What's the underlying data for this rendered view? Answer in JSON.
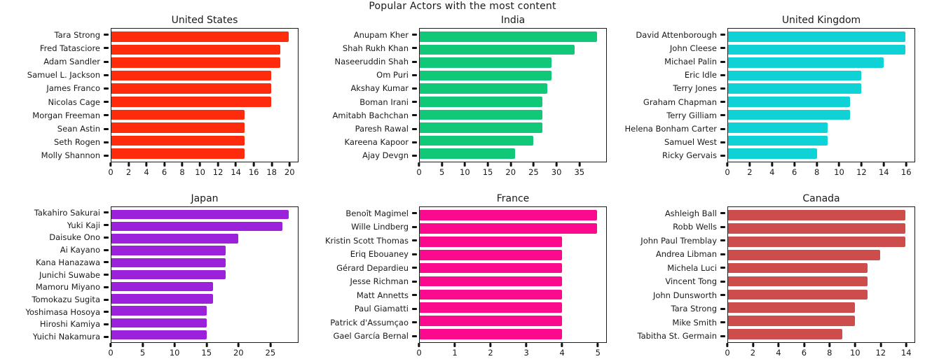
{
  "figure": {
    "title": "Popular Actors with the most content"
  },
  "chart_data": [
    {
      "type": "bar",
      "orientation": "horizontal",
      "title": "United States",
      "color": "#FF2B0D",
      "categories": [
        "Tara Strong",
        "Fred Tatasciore",
        "Adam Sandler",
        "Samuel L. Jackson",
        "James Franco",
        "Nicolas Cage",
        "Morgan Freeman",
        "Sean Astin",
        "Seth Rogen",
        "Molly Shannon"
      ],
      "values": [
        20,
        19,
        19,
        18,
        18,
        18,
        15,
        15,
        15,
        15
      ],
      "xticks": [
        0,
        2,
        4,
        6,
        8,
        10,
        12,
        14,
        16,
        18,
        20
      ],
      "xlim": [
        0,
        21
      ],
      "grid": false,
      "legend": "none"
    },
    {
      "type": "bar",
      "orientation": "horizontal",
      "title": "India",
      "color": "#10C878",
      "categories": [
        "Anupam Kher",
        "Shah Rukh Khan",
        "Naseeruddin Shah",
        "Om Puri",
        "Akshay Kumar",
        "Boman Irani",
        "Amitabh Bachchan",
        "Paresh Rawal",
        "Kareena Kapoor",
        "Ajay Devgn"
      ],
      "values": [
        39,
        34,
        29,
        29,
        28,
        27,
        27,
        27,
        25,
        21
      ],
      "xticks": [
        0,
        5,
        10,
        15,
        20,
        25,
        30,
        35
      ],
      "xlim": [
        0,
        41
      ],
      "grid": false,
      "legend": "none"
    },
    {
      "type": "bar",
      "orientation": "horizontal",
      "title": "United Kingdom",
      "color": "#0ED2D6",
      "categories": [
        "David Attenborough",
        "John Cleese",
        "Michael Palin",
        "Eric Idle",
        "Terry Jones",
        "Graham Chapman",
        "Terry Gilliam",
        "Helena Bonham Carter",
        "Samuel West",
        "Ricky Gervais"
      ],
      "values": [
        16,
        16,
        14,
        12,
        12,
        11,
        11,
        9,
        9,
        8
      ],
      "xticks": [
        0,
        2,
        4,
        6,
        8,
        10,
        12,
        14,
        16
      ],
      "xlim": [
        0,
        16.8
      ],
      "grid": false,
      "legend": "none"
    },
    {
      "type": "bar",
      "orientation": "horizontal",
      "title": "Japan",
      "color": "#9C21DB",
      "categories": [
        "Takahiro Sakurai",
        "Yuki Kaji",
        "Daisuke Ono",
        "Ai Kayano",
        "Kana Hanazawa",
        "Junichi Suwabe",
        "Mamoru Miyano",
        "Tomokazu Sugita",
        "Yoshimasa Hosoya",
        "Hiroshi Kamiya",
        "Yuichi Nakamura"
      ],
      "values": [
        28,
        27,
        20,
        18,
        18,
        18,
        16,
        16,
        15,
        15,
        15
      ],
      "xticks": [
        0,
        5,
        10,
        15,
        20,
        25
      ],
      "xlim": [
        0,
        29.4
      ],
      "grid": false,
      "legend": "none"
    },
    {
      "type": "bar",
      "orientation": "horizontal",
      "title": "France",
      "color": "#FB0A8E",
      "categories": [
        "Benoît Magimel",
        "Wille Lindberg",
        "Kristin Scott Thomas",
        "Eriq Ebouaney",
        "Gérard Depardieu",
        "Jesse Richman",
        "Matt Annetts",
        "Paul Giamatti",
        "Patrick d'Assumçao",
        "Gael García Bernal"
      ],
      "values": [
        5,
        5,
        4,
        4,
        4,
        4,
        4,
        4,
        4,
        4
      ],
      "xticks": [
        0,
        1,
        2,
        3,
        4,
        5
      ],
      "xlim": [
        0,
        5.25
      ],
      "grid": false,
      "legend": "none"
    },
    {
      "type": "bar",
      "orientation": "horizontal",
      "title": "Canada",
      "color": "#CD4C4C",
      "categories": [
        "Ashleigh Ball",
        "Robb Wells",
        "John Paul Tremblay",
        "Andrea Libman",
        "Michela Luci",
        "Vincent Tong",
        "John Dunsworth",
        "Tara Strong",
        "Mike Smith",
        "Tabitha St. Germain"
      ],
      "values": [
        14,
        14,
        14,
        12,
        11,
        11,
        11,
        10,
        10,
        9
      ],
      "xticks": [
        0,
        2,
        4,
        6,
        8,
        10,
        12,
        14
      ],
      "xlim": [
        0,
        14.7
      ],
      "grid": false,
      "legend": "none"
    }
  ]
}
